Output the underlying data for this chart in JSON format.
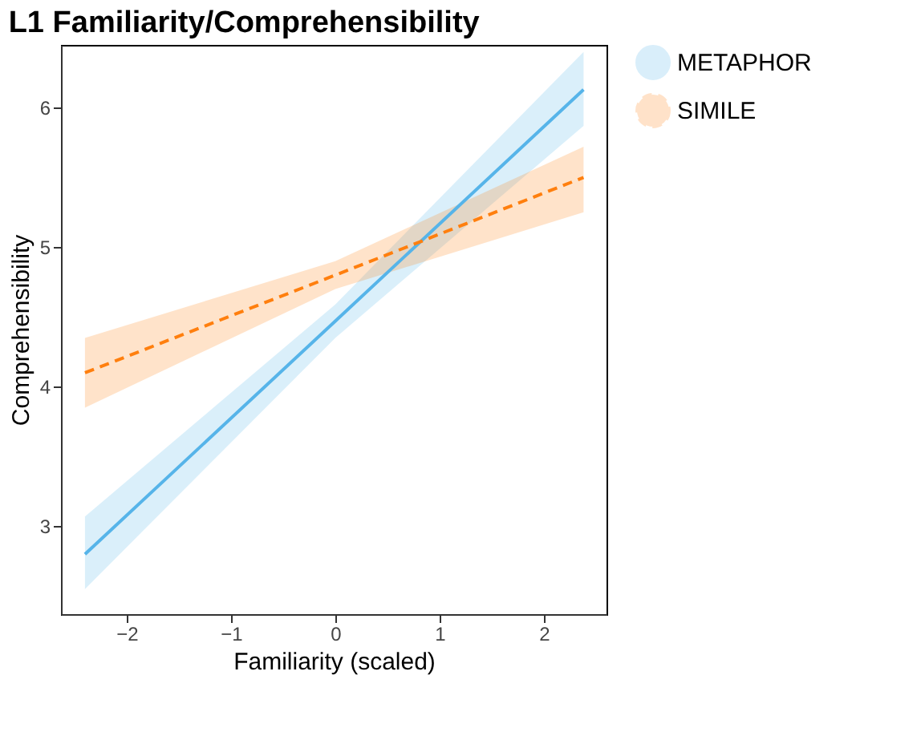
{
  "chart_data": {
    "type": "line",
    "title": "L1 Familiarity/Comprehensibility",
    "xlabel": "Familiarity (scaled)",
    "ylabel": "Comprehensibility",
    "xlim": [
      -2.63,
      2.6
    ],
    "ylim": [
      2.37,
      6.45
    ],
    "xticks": [
      -2,
      -1,
      0,
      1,
      2
    ],
    "yticks": [
      3,
      4,
      5,
      6
    ],
    "grid": false,
    "legend": "right",
    "marker": "none",
    "series": [
      {
        "name": "METAPHOR",
        "color": "#56b4e9",
        "line_style": "solid",
        "x": [
          -2.4,
          0,
          2.38
        ],
        "values": [
          2.8,
          4.47,
          6.13
        ],
        "lower": [
          2.55,
          4.35,
          5.87
        ],
        "upper": [
          3.07,
          4.59,
          6.4
        ]
      },
      {
        "name": "SIMILE",
        "color": "#ff7f0e",
        "line_style": "dashed",
        "x": [
          -2.4,
          0,
          2.38
        ],
        "values": [
          4.1,
          4.8,
          5.5
        ],
        "lower": [
          3.85,
          4.7,
          5.25
        ],
        "upper": [
          4.35,
          4.9,
          5.72
        ]
      }
    ]
  }
}
